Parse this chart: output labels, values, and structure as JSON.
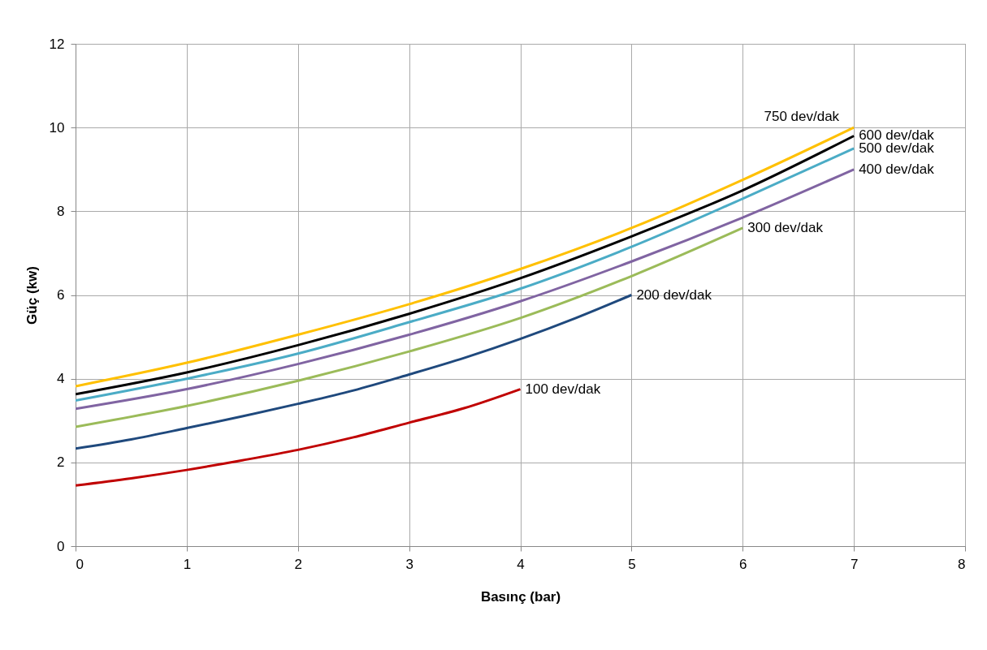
{
  "chart_data": {
    "type": "line",
    "xlabel": "Basınç (bar)",
    "ylabel": "Güç (kw)",
    "xlim": [
      0,
      8
    ],
    "xticks": [
      0,
      1,
      2,
      3,
      4,
      5,
      6,
      7,
      8
    ],
    "ylim": [
      0,
      12
    ],
    "yticks": [
      0,
      2,
      4,
      6,
      8,
      10,
      12
    ],
    "grid": true,
    "marker": "none",
    "series": [
      {
        "name": "100 dev/dak",
        "color": "#c00000",
        "x": [
          0,
          0.5,
          1,
          1.5,
          2,
          2.5,
          3,
          3.5,
          4
        ],
        "values": [
          1.45,
          1.62,
          1.82,
          2.05,
          2.3,
          2.6,
          2.95,
          3.3,
          3.75
        ]
      },
      {
        "name": "200 dev/dak",
        "color": "#1f497d",
        "x": [
          0,
          0.5,
          1,
          1.5,
          2,
          2.5,
          3,
          3.5,
          4,
          4.5,
          5
        ],
        "values": [
          2.33,
          2.55,
          2.82,
          3.1,
          3.4,
          3.72,
          4.1,
          4.5,
          4.95,
          5.45,
          6.0
        ]
      },
      {
        "name": "300 dev/dak",
        "color": "#9bbb59",
        "x": [
          0,
          1,
          2,
          3,
          4,
          5,
          6
        ],
        "values": [
          2.85,
          3.35,
          3.95,
          4.65,
          5.45,
          6.45,
          7.6
        ]
      },
      {
        "name": "400 dev/dak",
        "color": "#8064a2",
        "x": [
          0,
          1,
          2,
          3,
          4,
          5,
          6,
          7
        ],
        "values": [
          3.28,
          3.75,
          4.35,
          5.05,
          5.85,
          6.8,
          7.85,
          9.0
        ]
      },
      {
        "name": "500 dev/dak",
        "color": "#4bacc6",
        "x": [
          0,
          1,
          2,
          3,
          4,
          5,
          6,
          7
        ],
        "values": [
          3.48,
          4.0,
          4.6,
          5.35,
          6.15,
          7.15,
          8.3,
          9.5
        ]
      },
      {
        "name": "600 dev/dak",
        "color": "#000000",
        "x": [
          0,
          1,
          2,
          3,
          4,
          5,
          6,
          7
        ],
        "values": [
          3.63,
          4.15,
          4.8,
          5.55,
          6.4,
          7.4,
          8.5,
          9.8
        ]
      },
      {
        "name": "750 dev/dak",
        "color": "#ffc000",
        "x": [
          0,
          1,
          2,
          3,
          4,
          5,
          6,
          7
        ],
        "values": [
          3.82,
          4.38,
          5.05,
          5.78,
          6.62,
          7.6,
          8.75,
          10.0
        ]
      }
    ]
  }
}
